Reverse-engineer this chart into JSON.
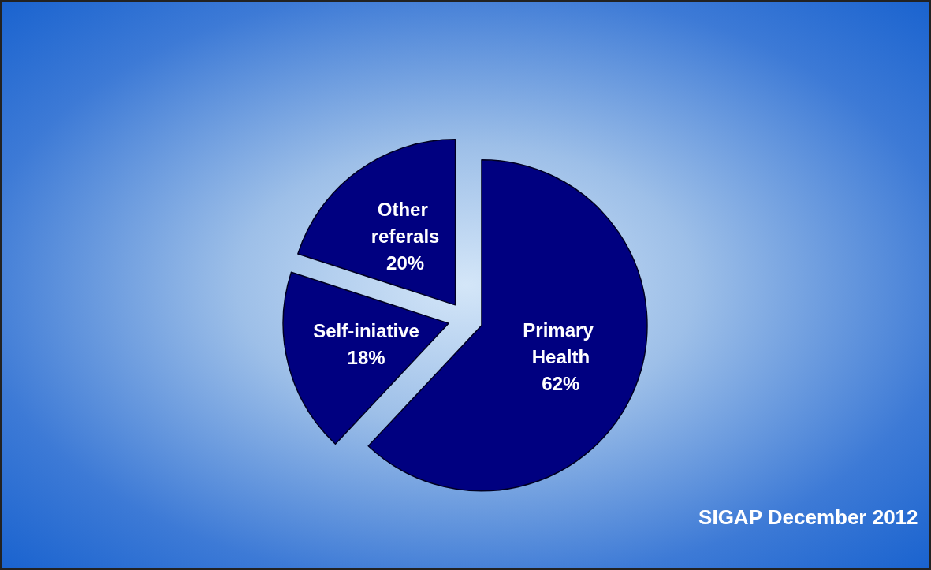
{
  "chart_data": {
    "type": "pie",
    "categories": [
      "Primary Health",
      "Self-iniative",
      "Other referals"
    ],
    "values": [
      62,
      18,
      20
    ],
    "colors": [
      "#000080",
      "#000080",
      "#000080"
    ],
    "value_labels": [
      "62%",
      "18%",
      "20%"
    ],
    "legend": false,
    "annotations": [
      "SIGAP December 2012"
    ]
  }
}
